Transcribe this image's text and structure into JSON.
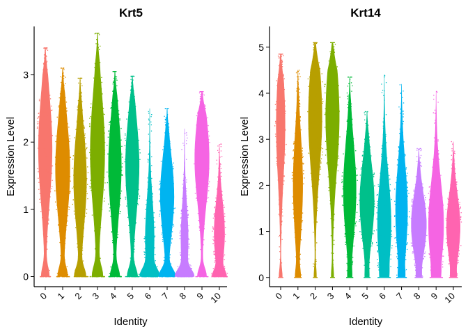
{
  "chart_data": [
    {
      "type": "violin",
      "title": "Krt5",
      "xlabel": "Identity",
      "ylabel": "Expression Level",
      "ylim": [
        -0.15,
        3.72
      ],
      "yticks": [
        "0",
        "1",
        "2",
        "3"
      ],
      "grid": false,
      "legend": "none",
      "categories": [
        "0",
        "1",
        "2",
        "3",
        "4",
        "5",
        "6",
        "7",
        "8",
        "9",
        "10"
      ],
      "colors": [
        "#F8766D",
        "#DE8C00",
        "#B79F00",
        "#7CAE00",
        "#00BA38",
        "#00C08B",
        "#00BFC4",
        "#00B4F0",
        "#C77CFF",
        "#F564E3",
        "#FF64B0"
      ],
      "max": [
        3.4,
        3.1,
        2.95,
        3.62,
        3.05,
        2.98,
        2.5,
        2.5,
        2.2,
        2.75,
        1.97
      ],
      "center": [
        1.9,
        1.6,
        1.45,
        1.85,
        1.65,
        1.65,
        0.55,
        1.2,
        0.55,
        1.75,
        0.65
      ],
      "peak_width": [
        0.85,
        0.9,
        0.8,
        0.9,
        0.8,
        0.85,
        0.55,
        0.85,
        0.45,
        0.9,
        0.65
      ],
      "zero_width": [
        0.45,
        0.55,
        0.65,
        0.6,
        0.55,
        0.6,
        0.9,
        0.95,
        0.95,
        0.55,
        0.65
      ]
    },
    {
      "type": "violin",
      "title": "Krt14",
      "xlabel": "Identity",
      "ylabel": "Expression Level",
      "ylim": [
        -0.2,
        5.45
      ],
      "yticks": [
        "0",
        "1",
        "2",
        "3",
        "4",
        "5"
      ],
      "grid": false,
      "legend": "none",
      "categories": [
        "0",
        "1",
        "2",
        "3",
        "4",
        "5",
        "6",
        "7",
        "8",
        "9",
        "10"
      ],
      "colors": [
        "#F8766D",
        "#DE8C00",
        "#B79F00",
        "#7CAE00",
        "#00BA38",
        "#00C08B",
        "#00BFC4",
        "#00B4F0",
        "#C77CFF",
        "#F564E3",
        "#FF64B0"
      ],
      "max": [
        4.85,
        4.5,
        5.1,
        5.1,
        4.35,
        3.6,
        4.4,
        4.2,
        2.8,
        4.05,
        2.95
      ],
      "center": [
        3.3,
        2.0,
        3.5,
        3.5,
        1.9,
        1.65,
        1.15,
        1.45,
        1.15,
        1.15,
        1.1
      ],
      "peak_width": [
        0.55,
        0.6,
        0.85,
        0.85,
        0.8,
        0.9,
        0.85,
        0.75,
        0.95,
        0.95,
        0.85
      ],
      "zero_width": [
        0.2,
        0.25,
        0.15,
        0.15,
        0.15,
        0.15,
        0.15,
        0.2,
        0.15,
        0.15,
        0.15
      ]
    }
  ]
}
